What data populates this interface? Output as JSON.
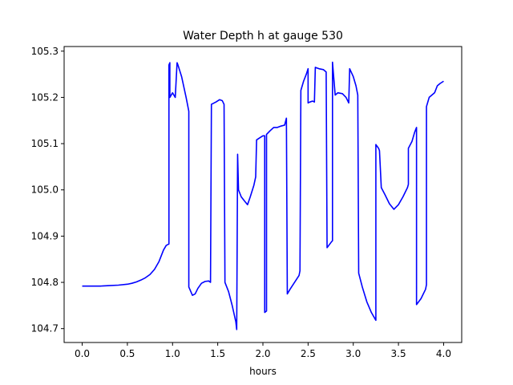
{
  "chart_data": {
    "type": "line",
    "title": "Water Depth h at gauge 530",
    "xlabel": "hours",
    "ylabel": "",
    "xlim": [
      -0.2,
      4.2
    ],
    "ylim": [
      104.67,
      105.31
    ],
    "xticks": [
      0.0,
      0.5,
      1.0,
      1.5,
      2.0,
      2.5,
      3.0,
      3.5,
      4.0
    ],
    "xtick_labels": [
      "0.0",
      "0.5",
      "1.0",
      "1.5",
      "2.0",
      "2.5",
      "3.0",
      "3.5",
      "4.0"
    ],
    "yticks": [
      104.7,
      104.8,
      104.9,
      105.0,
      105.1,
      105.2,
      105.3
    ],
    "ytick_labels": [
      "104.7",
      "104.8",
      "104.9",
      "105.0",
      "105.1",
      "105.2",
      "105.3"
    ],
    "grid": false,
    "series": [
      {
        "color": "#0000ff",
        "x": [
          0.0,
          0.1,
          0.2,
          0.3,
          0.4,
          0.5,
          0.55,
          0.6,
          0.65,
          0.7,
          0.75,
          0.8,
          0.85,
          0.9,
          0.93,
          0.96,
          0.96,
          0.97,
          0.97,
          1.0,
          1.03,
          1.05,
          1.06,
          1.1,
          1.15,
          1.18,
          1.18,
          1.22,
          1.25,
          1.28,
          1.32,
          1.36,
          1.4,
          1.42,
          1.43,
          1.45,
          1.48,
          1.52,
          1.55,
          1.57,
          1.58,
          1.62,
          1.66,
          1.7,
          1.71,
          1.72,
          1.73,
          1.76,
          1.8,
          1.83,
          1.86,
          1.9,
          1.92,
          1.93,
          1.96,
          2.0,
          2.02,
          2.02,
          2.04,
          2.04,
          2.08,
          2.12,
          2.16,
          2.2,
          2.24,
          2.26,
          2.27,
          2.3,
          2.35,
          2.4,
          2.41,
          2.42,
          2.45,
          2.48,
          2.5,
          2.5,
          2.52,
          2.55,
          2.57,
          2.58,
          2.62,
          2.67,
          2.7,
          2.71,
          2.76,
          2.77,
          2.77,
          2.8,
          2.83,
          2.88,
          2.92,
          2.95,
          2.96,
          3.0,
          3.03,
          3.05,
          3.06,
          3.1,
          3.15,
          3.2,
          3.25,
          3.25,
          3.28,
          3.29,
          3.31,
          3.35,
          3.4,
          3.45,
          3.5,
          3.55,
          3.6,
          3.61,
          3.61,
          3.65,
          3.68,
          3.7,
          3.7,
          3.75,
          3.8,
          3.81,
          3.81,
          3.84,
          3.87,
          3.9,
          3.93,
          3.96,
          4.0
        ],
        "y": [
          104.792,
          104.792,
          104.792,
          104.793,
          104.794,
          104.796,
          104.798,
          104.801,
          104.805,
          104.81,
          104.817,
          104.828,
          104.845,
          104.87,
          104.88,
          104.883,
          105.27,
          105.275,
          105.2,
          105.21,
          105.2,
          105.275,
          105.27,
          105.245,
          105.2,
          105.17,
          104.79,
          104.772,
          104.775,
          104.787,
          104.798,
          104.802,
          104.803,
          104.8,
          105.185,
          105.187,
          105.19,
          105.195,
          105.193,
          105.185,
          104.8,
          104.78,
          104.75,
          104.715,
          104.698,
          105.077,
          105.0,
          104.985,
          104.975,
          104.968,
          104.985,
          105.01,
          105.028,
          105.108,
          105.112,
          105.117,
          105.117,
          104.735,
          104.738,
          105.12,
          105.128,
          105.135,
          105.135,
          105.138,
          105.14,
          105.155,
          104.775,
          104.785,
          104.8,
          104.815,
          104.825,
          105.215,
          105.235,
          105.25,
          105.262,
          105.188,
          105.19,
          105.192,
          105.19,
          105.265,
          105.262,
          105.26,
          105.255,
          104.875,
          104.888,
          104.89,
          105.276,
          105.205,
          105.21,
          105.208,
          105.2,
          105.188,
          105.262,
          105.245,
          105.225,
          105.205,
          104.82,
          104.79,
          104.758,
          104.735,
          104.718,
          105.098,
          105.09,
          105.085,
          105.005,
          104.99,
          104.97,
          104.958,
          104.968,
          104.985,
          105.005,
          105.012,
          105.09,
          105.105,
          105.125,
          105.135,
          104.752,
          104.765,
          104.785,
          104.795,
          105.18,
          105.2,
          105.205,
          105.21,
          105.225,
          105.23,
          105.235
        ]
      }
    ]
  }
}
